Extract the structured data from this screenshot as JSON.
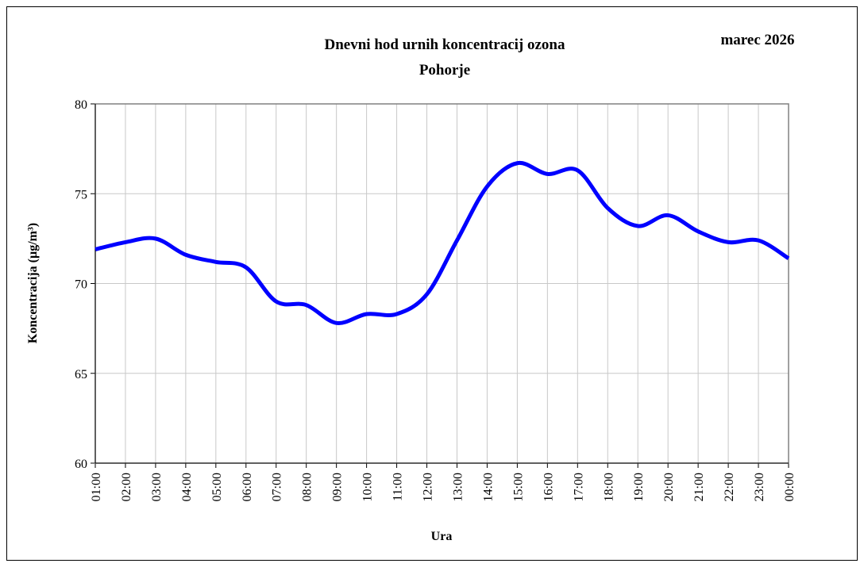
{
  "chart_data": {
    "type": "line",
    "title": "Dnevni hod urnih koncentracij ozona",
    "subtitle": "Pohorje",
    "annotation": "marec 2026",
    "y_label": "Koncentracija  (µg/m³)",
    "x_label": "Ura",
    "categories": [
      "01:00",
      "02:00",
      "03:00",
      "04:00",
      "05:00",
      "06:00",
      "07:00",
      "08:00",
      "09:00",
      "10:00",
      "11:00",
      "12:00",
      "13:00",
      "14:00",
      "15:00",
      "16:00",
      "17:00",
      "18:00",
      "19:00",
      "20:00",
      "21:00",
      "22:00",
      "23:00",
      "00:00"
    ],
    "series": [
      {
        "name": "Pohorje",
        "color": "#0000ff",
        "values": [
          71.9,
          72.3,
          72.5,
          71.6,
          71.2,
          70.9,
          69.0,
          68.8,
          67.8,
          68.3,
          68.3,
          69.4,
          72.4,
          75.4,
          76.7,
          76.1,
          76.3,
          74.2,
          73.2,
          73.8,
          72.9,
          72.3,
          72.4,
          71.4
        ]
      }
    ],
    "ylim": [
      60,
      80
    ],
    "yticks": [
      60,
      65,
      70,
      75,
      80
    ],
    "grid": true
  }
}
